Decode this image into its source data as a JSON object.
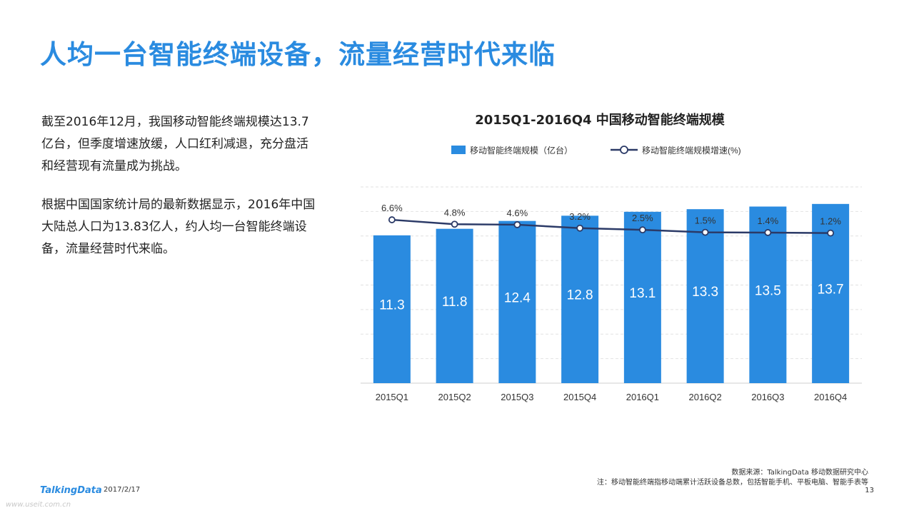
{
  "slide": {
    "title": "人均一台智能终端设备，流量经营时代来临",
    "paragraph1": "截至2016年12月，我国移动智能终端规模达13.7亿台，但季度增速放缓，人口红利减退，充分盘活和经营现有流量成为挑战。",
    "paragraph2": "根据中国国家统计局的最新数据显示，2016年中国大陆总人口为13.83亿人，约人均一台智能终端设备，流量经营时代来临。",
    "source": "数据来源：TalkingData 移动数据研究中心",
    "note": "注：移动智能终端指移动端累计活跃设备总数，包括智能手机、平板电脑、智能手表等",
    "page_number": "13",
    "brand": "TalkingData",
    "date": "2017/2/17",
    "watermark": "www.useit.com.cn"
  },
  "chart_data": {
    "type": "bar",
    "title": "2015Q1-2016Q4 中国移动智能终端规模",
    "categories": [
      "2015Q1",
      "2015Q2",
      "2015Q3",
      "2015Q4",
      "2016Q1",
      "2016Q2",
      "2016Q3",
      "2016Q4"
    ],
    "series": [
      {
        "name": "移动智能终端规模（亿台）",
        "type": "bar",
        "values": [
          11.3,
          11.8,
          12.4,
          12.8,
          13.1,
          13.3,
          13.5,
          13.7
        ],
        "labels": [
          "11.3",
          "11.8",
          "12.4",
          "12.8",
          "13.1",
          "13.3",
          "13.5",
          "13.7"
        ],
        "color": "#2a8be0"
      },
      {
        "name": "移动智能终端规模增速(%)",
        "type": "line",
        "values": [
          6.6,
          4.8,
          4.6,
          3.2,
          2.5,
          1.5,
          1.4,
          1.2
        ],
        "labels": [
          "6.6%",
          "4.8%",
          "4.6%",
          "3.2%",
          "2.5%",
          "1.5%",
          "1.4%",
          "1.2%"
        ],
        "color": "#2b3a67"
      }
    ],
    "bar_axis_max": 15,
    "line_axis_range": [
      -60,
      20
    ],
    "grid": true,
    "legend_position": "top"
  }
}
